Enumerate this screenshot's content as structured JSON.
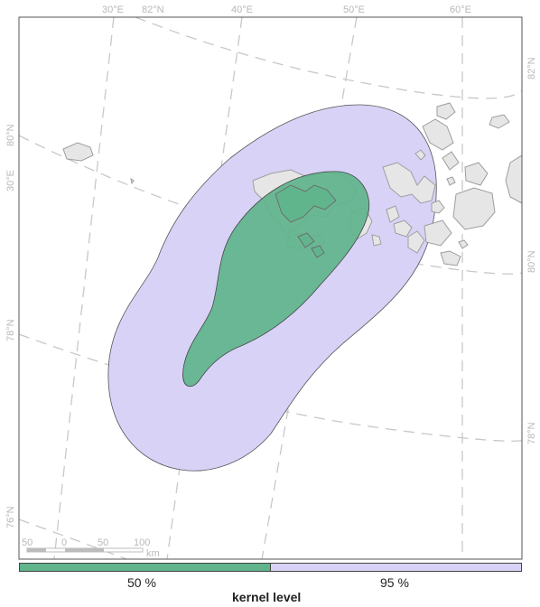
{
  "map": {
    "graticule_top": [
      "30°E",
      "82°N",
      "40°E",
      "50°E",
      "60°E"
    ],
    "graticule_left": [
      "80°N",
      "30°E",
      "78°N",
      "76°N"
    ],
    "graticule_right": [
      "82°N",
      "80°N",
      "78°N"
    ],
    "colors": {
      "land": "#e6e6e6",
      "land_stroke": "#9e9e9e",
      "kernel_95": "#d9d2f7",
      "kernel_50": "#5fb48c",
      "graticule": "#c8c8c8",
      "frame": "#555555"
    }
  },
  "scalebar": {
    "ticks": [
      "50",
      "0",
      "50",
      "100"
    ],
    "unit": "km"
  },
  "legend": {
    "title": "kernel level",
    "items": [
      {
        "label": "50 %",
        "color": "#5fb48c"
      },
      {
        "label": "95 %",
        "color": "#d9d2f7"
      }
    ]
  }
}
